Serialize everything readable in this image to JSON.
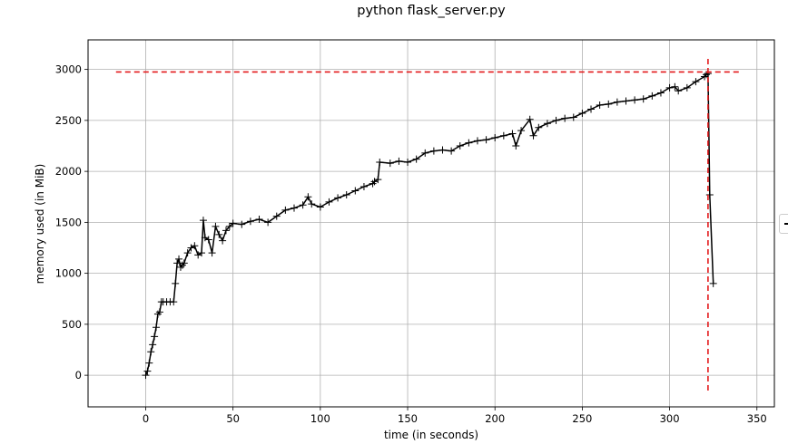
{
  "chart_data": {
    "type": "line",
    "title": "python flask_server.py",
    "xlabel": "time (in seconds)",
    "ylabel": "memory used (in MiB)",
    "xlim": [
      -33,
      360
    ],
    "ylim": [
      -310,
      3290
    ],
    "xticks": [
      0,
      50,
      100,
      150,
      200,
      250,
      300,
      350
    ],
    "yticks": [
      0,
      500,
      1000,
      1500,
      2000,
      2500,
      3000
    ],
    "grid": true,
    "legend": "right (clipped)",
    "colors": {
      "series": "#000000",
      "peak_marker": "#e31a1c",
      "grid": "#b0b0b0"
    },
    "series": [
      {
        "marker": "+",
        "x": [
          0,
          1,
          2,
          3,
          4,
          5,
          6,
          7,
          8,
          9,
          10,
          12,
          14,
          16,
          17,
          18,
          19,
          20,
          21,
          22,
          24,
          26,
          28,
          30,
          32,
          33,
          34,
          36,
          38,
          40,
          42,
          44,
          46,
          48,
          50,
          55,
          60,
          65,
          70,
          75,
          80,
          85,
          90,
          93,
          95,
          100,
          105,
          110,
          115,
          120,
          125,
          130,
          131,
          133,
          134,
          140,
          145,
          150,
          155,
          160,
          165,
          170,
          175,
          180,
          185,
          190,
          195,
          200,
          205,
          210,
          212,
          215,
          220,
          222,
          225,
          230,
          235,
          240,
          245,
          250,
          255,
          260,
          265,
          270,
          275,
          280,
          285,
          290,
          295,
          300,
          303,
          305,
          310,
          315,
          320,
          321,
          322,
          323,
          325
        ],
        "y": [
          0,
          40,
          120,
          230,
          300,
          380,
          470,
          600,
          620,
          720,
          720,
          720,
          720,
          720,
          900,
          1100,
          1140,
          1060,
          1080,
          1100,
          1200,
          1250,
          1270,
          1180,
          1200,
          1520,
          1350,
          1330,
          1200,
          1460,
          1380,
          1320,
          1420,
          1460,
          1490,
          1480,
          1510,
          1530,
          1500,
          1560,
          1620,
          1640,
          1670,
          1750,
          1680,
          1650,
          1700,
          1740,
          1770,
          1810,
          1850,
          1880,
          1900,
          1920,
          2090,
          2080,
          2100,
          2090,
          2120,
          2180,
          2200,
          2210,
          2200,
          2250,
          2280,
          2300,
          2310,
          2330,
          2350,
          2370,
          2250,
          2400,
          2510,
          2350,
          2430,
          2470,
          2500,
          2520,
          2530,
          2570,
          2610,
          2650,
          2660,
          2680,
          2690,
          2700,
          2710,
          2740,
          2770,
          2820,
          2830,
          2790,
          2820,
          2880,
          2930,
          2950,
          2960,
          1770,
          900
        ]
      }
    ],
    "annotations": [
      {
        "kind": "hline",
        "y": 2975,
        "x_from": -17,
        "x_to": 341,
        "style": "dashed",
        "color": "red"
      },
      {
        "kind": "vline",
        "x": 322,
        "y_from": -150,
        "y_to": 3120,
        "style": "dashed",
        "color": "red"
      }
    ]
  }
}
